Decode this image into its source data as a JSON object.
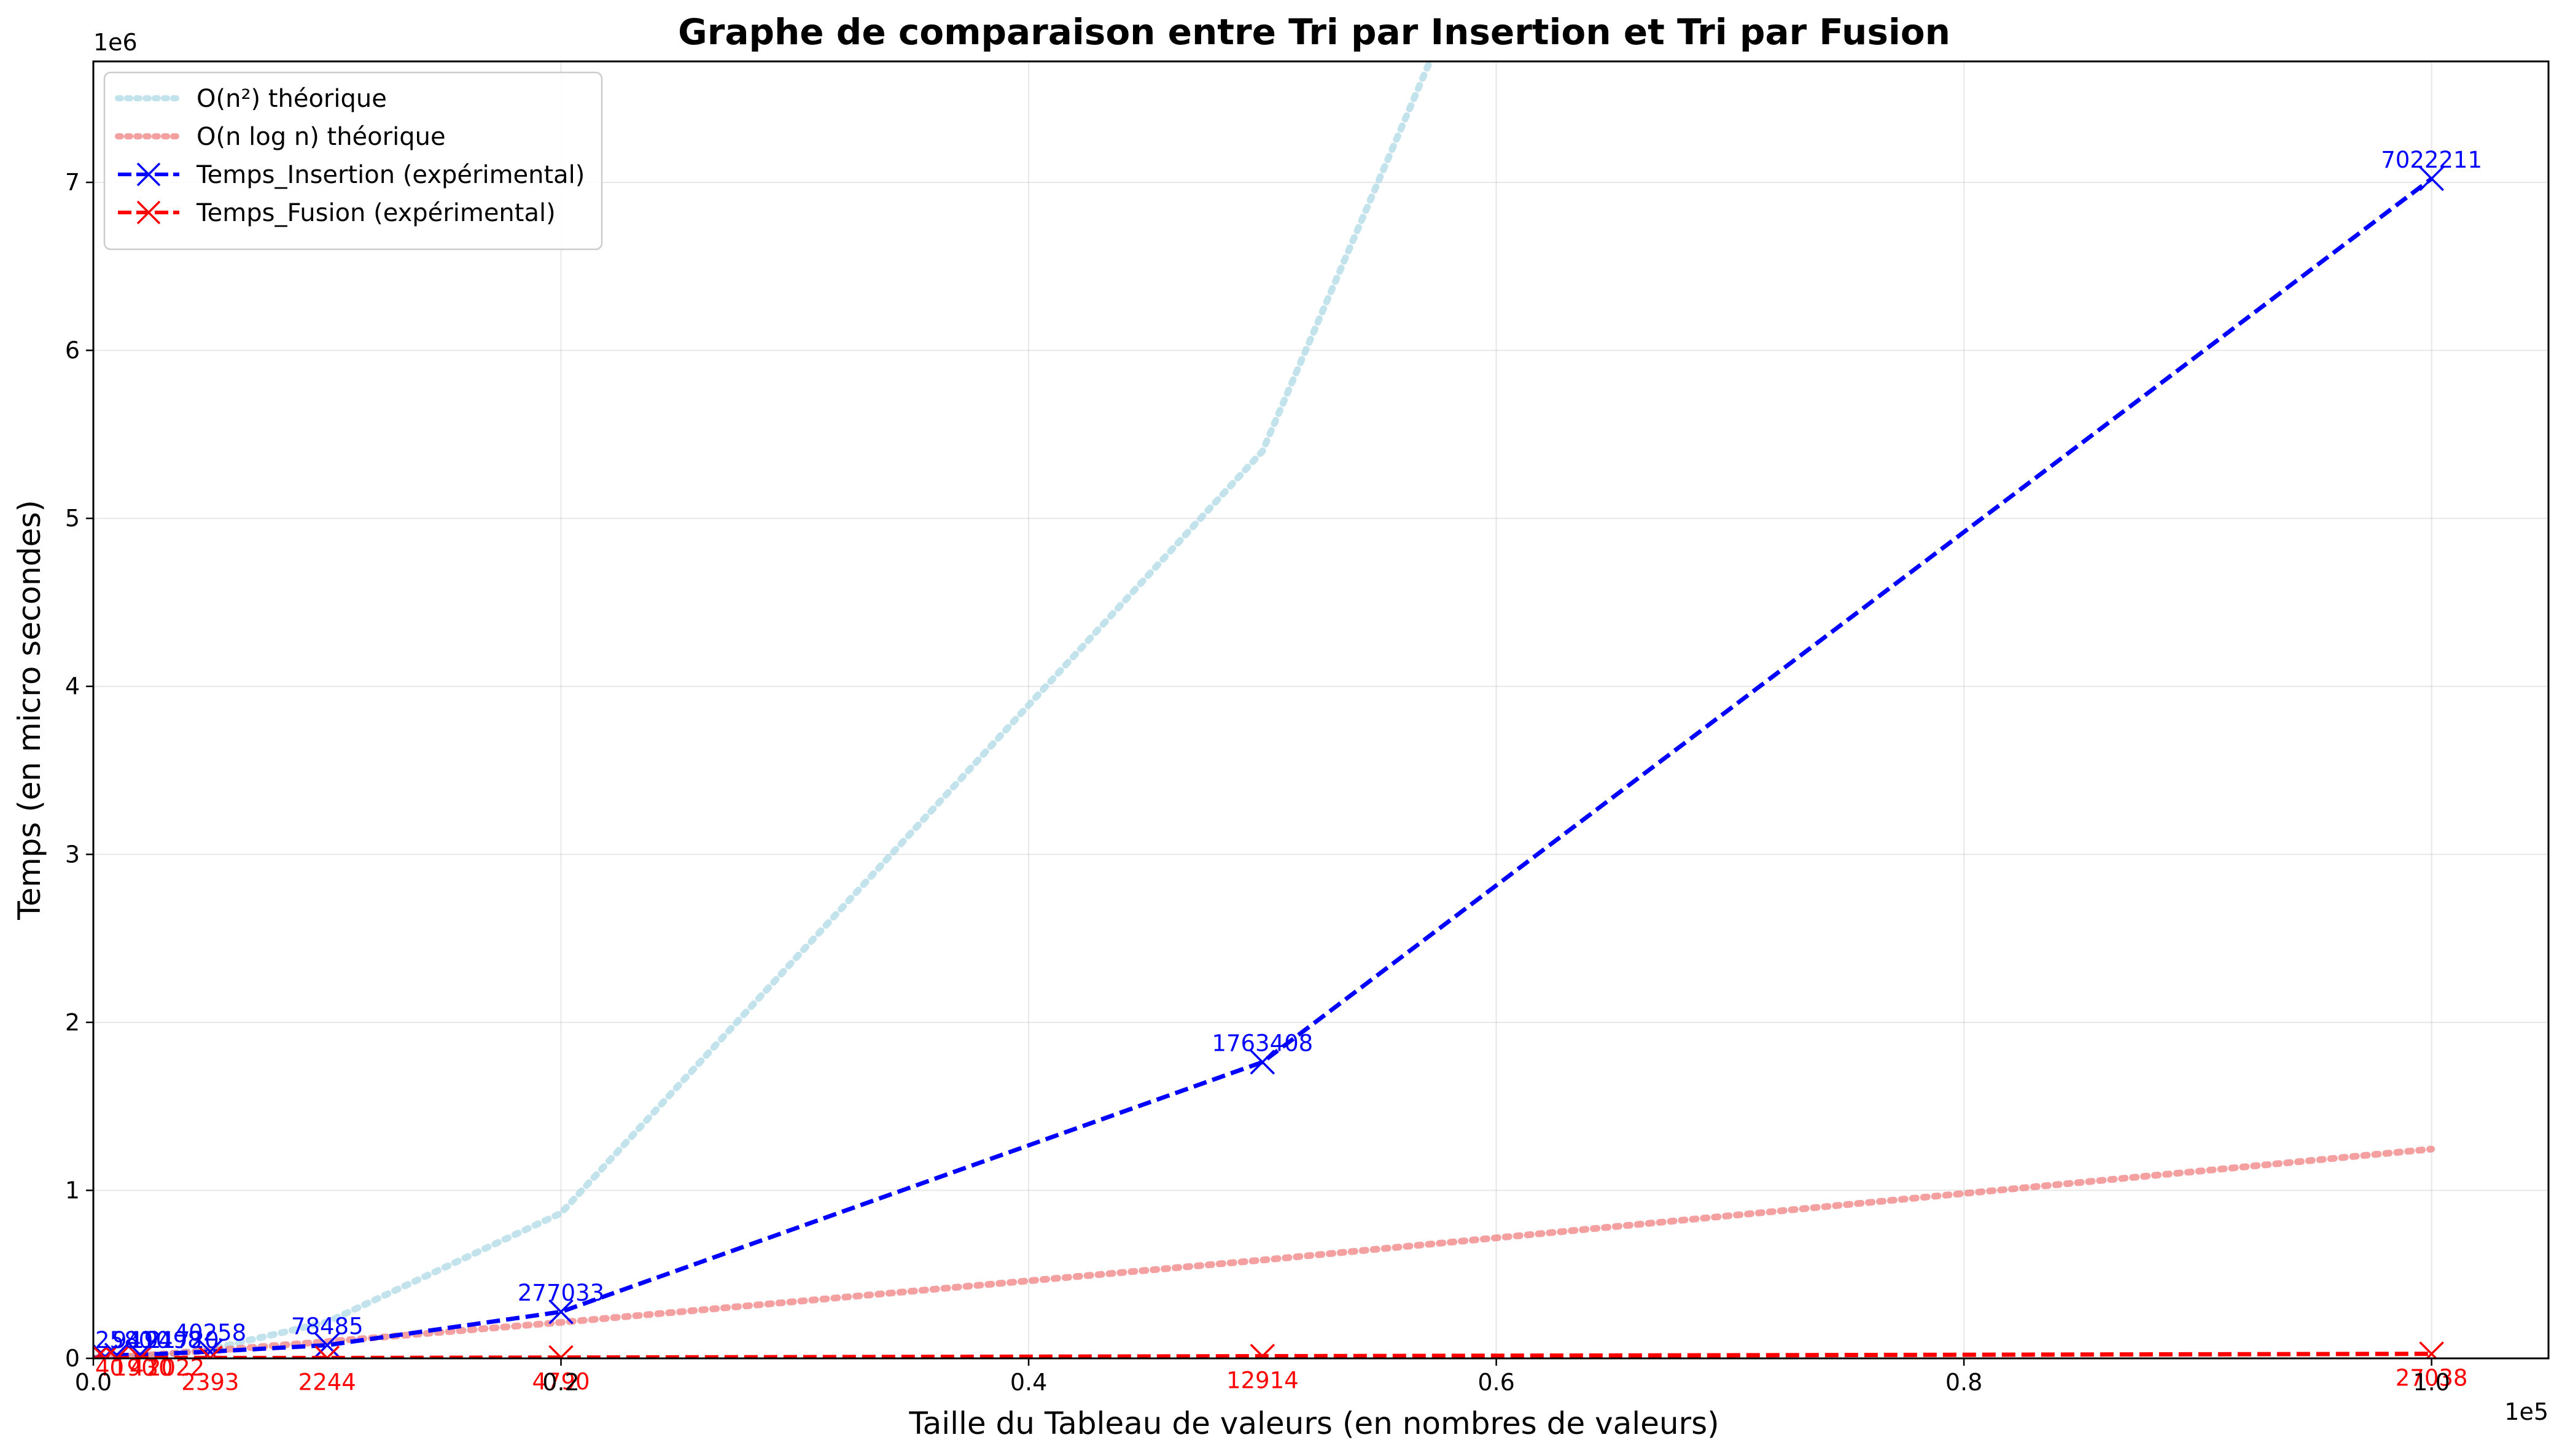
{
  "chart_data": {
    "type": "line",
    "title": "Graphe de comparaison entre Tri par Insertion et Tri par Fusion",
    "xlabel": "Taille du Tableau de valeurs (en nombres de valeurs)",
    "ylabel": "Temps (en micro secondes)",
    "x_offset_label": "1e5",
    "y_offset_label": "1e6",
    "xlim": [
      0,
      105000
    ],
    "ylim": [
      0,
      7720000
    ],
    "x_ticks": [
      0,
      20000,
      40000,
      60000,
      80000,
      100000
    ],
    "x_tick_labels": [
      "0.0",
      "0.2",
      "0.4",
      "0.6",
      "0.8",
      "1.0"
    ],
    "y_ticks": [
      0,
      1000000,
      2000000,
      3000000,
      4000000,
      5000000,
      6000000,
      7000000
    ],
    "y_tick_labels": [
      "0",
      "1",
      "2",
      "3",
      "4",
      "5",
      "6",
      "7"
    ],
    "grid": true,
    "legend_position": "top-left",
    "x": [
      100,
      500,
      1000,
      2000,
      5000,
      10000,
      20000,
      50000,
      100000
    ],
    "series": [
      {
        "name": "O(n²) théorique",
        "style": "dotted",
        "color": "#add8e6",
        "coefficient": 0.00216,
        "formula": "n^2"
      },
      {
        "name": "O(n log n) théorique",
        "style": "dotted",
        "color": "#f08080",
        "coefficient": 0.75,
        "formula": "n log n"
      },
      {
        "name": "Temps_Insertion (expérimental)",
        "style": "dashed",
        "color": "#0000ff",
        "marker": "x",
        "values": [
          2580,
          9410,
          19498,
          21720,
          40258,
          78485,
          277033,
          1763408,
          7022211
        ],
        "labels": [
          "",
          "",
          "",
          "",
          "40258",
          "78485",
          "277033",
          "1763408",
          "7022211"
        ],
        "overlap_labels": [
          "2580",
          "9410",
          "19498",
          "21720"
        ]
      },
      {
        "name": "Temps_Fusion (expérimental)",
        "style": "dashed",
        "color": "#ff0000",
        "marker": "x",
        "values": [
          40,
          190,
          430,
          2022,
          2393,
          2244,
          4790,
          12914,
          27038
        ],
        "labels": [
          "",
          "",
          "",
          "",
          "2393",
          "2244",
          "4790",
          "12914",
          "27038"
        ],
        "overlap_labels": [
          "40",
          "190",
          "430",
          "2022"
        ]
      }
    ]
  }
}
